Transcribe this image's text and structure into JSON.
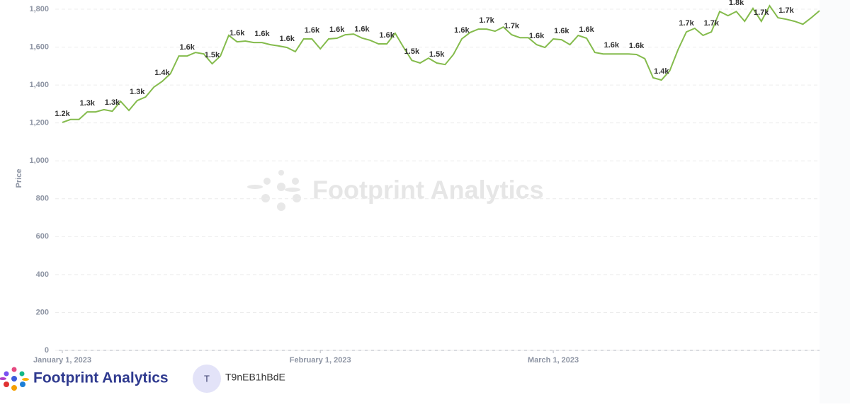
{
  "chart_data": {
    "type": "line",
    "y_label": "Price",
    "watermark": "Footprint Analytics",
    "x": [
      "2023-01-01",
      "2023-01-02",
      "2023-01-03",
      "2023-01-04",
      "2023-01-05",
      "2023-01-06",
      "2023-01-07",
      "2023-01-08",
      "2023-01-09",
      "2023-01-10",
      "2023-01-11",
      "2023-01-12",
      "2023-01-13",
      "2023-01-14",
      "2023-01-15",
      "2023-01-16",
      "2023-01-17",
      "2023-01-18",
      "2023-01-19",
      "2023-01-20",
      "2023-01-21",
      "2023-01-22",
      "2023-01-23",
      "2023-01-24",
      "2023-01-25",
      "2023-01-26",
      "2023-01-27",
      "2023-01-28",
      "2023-01-29",
      "2023-01-30",
      "2023-01-31",
      "2023-02-01",
      "2023-02-02",
      "2023-02-03",
      "2023-02-04",
      "2023-02-05",
      "2023-02-06",
      "2023-02-07",
      "2023-02-08",
      "2023-02-09",
      "2023-02-10",
      "2023-02-11",
      "2023-02-12",
      "2023-02-13",
      "2023-02-14",
      "2023-02-15",
      "2023-02-16",
      "2023-02-17",
      "2023-02-18",
      "2023-02-19",
      "2023-02-20",
      "2023-02-21",
      "2023-02-22",
      "2023-02-23",
      "2023-02-24",
      "2023-02-25",
      "2023-02-26",
      "2023-02-27",
      "2023-02-28",
      "2023-03-01",
      "2023-03-02",
      "2023-03-03",
      "2023-03-04",
      "2023-03-05",
      "2023-03-06",
      "2023-03-07",
      "2023-03-08",
      "2023-03-09",
      "2023-03-10",
      "2023-03-11",
      "2023-03-12",
      "2023-03-13",
      "2023-03-14",
      "2023-03-15",
      "2023-03-16",
      "2023-03-17",
      "2023-03-18",
      "2023-03-19",
      "2023-03-20",
      "2023-03-21",
      "2023-03-22",
      "2023-03-23",
      "2023-03-24",
      "2023-03-25",
      "2023-03-26",
      "2023-03-27",
      "2023-03-28",
      "2023-03-29",
      "2023-03-30",
      "2023-03-31",
      "2023-04-01",
      "2023-04-02"
    ],
    "series": [
      {
        "color": "#84bb4c",
        "values": [
          1203,
          1218,
          1218,
          1258,
          1258,
          1270,
          1262,
          1314,
          1266,
          1318,
          1337,
          1389,
          1419,
          1460,
          1553,
          1553,
          1572,
          1564,
          1512,
          1553,
          1662,
          1628,
          1632,
          1624,
          1624,
          1613,
          1606,
          1598,
          1576,
          1643,
          1643,
          1591,
          1643,
          1647,
          1665,
          1669,
          1648,
          1636,
          1617,
          1617,
          1673,
          1600,
          1530,
          1516,
          1542,
          1516,
          1508,
          1561,
          1643,
          1677,
          1695,
          1695,
          1684,
          1706,
          1665,
          1650,
          1650,
          1613,
          1598,
          1643,
          1639,
          1613,
          1662,
          1647,
          1572,
          1564,
          1564,
          1564,
          1564,
          1561,
          1539,
          1438,
          1426,
          1475,
          1587,
          1680,
          1699,
          1662,
          1680,
          1788,
          1766,
          1788,
          1736,
          1804,
          1736,
          1818,
          1755,
          1747,
          1736,
          1721,
          1755,
          1792
        ],
        "value_labels": [
          "1.2k",
          null,
          null,
          "1.3k",
          null,
          null,
          "1.3k",
          null,
          null,
          "1.3k",
          null,
          null,
          "1.4k",
          null,
          null,
          "1.6k",
          null,
          null,
          "1.5k",
          null,
          null,
          "1.6k",
          null,
          null,
          "1.6k",
          null,
          null,
          "1.6k",
          null,
          null,
          "1.6k",
          null,
          null,
          "1.6k",
          null,
          null,
          "1.6k",
          null,
          null,
          "1.6k",
          null,
          null,
          "1.5k",
          null,
          null,
          "1.5k",
          null,
          null,
          "1.6k",
          null,
          null,
          "1.7k",
          null,
          null,
          "1.7k",
          null,
          null,
          "1.6k",
          null,
          null,
          "1.6k",
          null,
          null,
          "1.6k",
          null,
          null,
          "1.6k",
          null,
          null,
          "1.6k",
          null,
          null,
          "1.4k",
          null,
          null,
          "1.7k",
          null,
          null,
          "1.7k",
          null,
          null,
          "1.8k",
          null,
          null,
          "1.7k",
          null,
          null,
          "1.7k",
          null,
          null,
          null,
          null
        ]
      }
    ],
    "xlim": [
      "2023-01-01",
      "2023-04-02"
    ],
    "xticks": [
      {
        "value": "2023-01-01",
        "label": "January 1, 2023"
      },
      {
        "value": "2023-02-01",
        "label": "February 1, 2023"
      },
      {
        "value": "2023-03-01",
        "label": "March 1, 2023"
      }
    ],
    "ylim": [
      0,
      1800
    ],
    "yticks": [
      0,
      200,
      400,
      600,
      800,
      {
        "value": 1000,
        "label": "1,000"
      },
      {
        "value": 1200,
        "label": "1,200"
      },
      {
        "value": 1400,
        "label": "1,400"
      },
      {
        "value": 1600,
        "label": "1,600"
      },
      {
        "value": 1800,
        "label": "1,800"
      }
    ],
    "grid": true
  },
  "footer": {
    "brand": "Footprint Analytics",
    "avatar": "T",
    "user": "T9nEB1hBdE"
  }
}
